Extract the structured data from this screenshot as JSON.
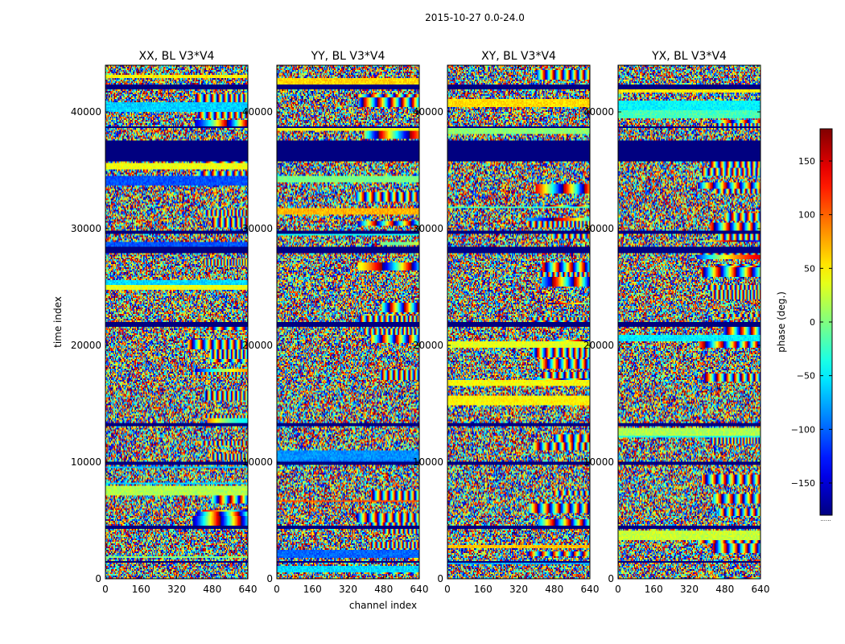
{
  "chart_data": {
    "type": "heatmap",
    "suptitle": "2015-10-27 0.0-24.0",
    "xlabel": "channel index",
    "ylabel": "time index",
    "colorbar_label": "phase (deg.)",
    "colorbar_range": [
      -180,
      180
    ],
    "colorbar_ticks": [
      -150,
      -100,
      -50,
      0,
      50,
      100,
      150
    ],
    "colorbar_tick_labels": [
      "−150",
      "−100",
      "−50",
      "0",
      "50",
      "100",
      "150"
    ],
    "colorbar_below_note": "......",
    "xlim": [
      0,
      640
    ],
    "ylim": [
      0,
      44000
    ],
    "xticks": [
      0,
      160,
      320,
      480,
      640
    ],
    "yticks": [
      0,
      10000,
      20000,
      30000,
      40000
    ],
    "colormap": "jet",
    "panels": [
      {
        "title": "XX, BL V3*V4",
        "pol": "XX",
        "seed": 11
      },
      {
        "title": "YY, BL V3*V4",
        "pol": "YY",
        "seed": 23
      },
      {
        "title": "XY, BL V3*V4",
        "pol": "XY",
        "seed": 37
      },
      {
        "title": "YX, BL V3*V4",
        "pol": "YX",
        "seed": 53
      }
    ],
    "flagged_time_ranges": [
      [
        1350,
        1500
      ],
      [
        4300,
        4500
      ],
      [
        9800,
        10000
      ],
      [
        13000,
        13300
      ],
      [
        21600,
        22000
      ],
      [
        27900,
        28400
      ],
      [
        29500,
        29800
      ],
      [
        35700,
        37600
      ],
      [
        38600,
        38800
      ],
      [
        42000,
        42300
      ]
    ]
  }
}
